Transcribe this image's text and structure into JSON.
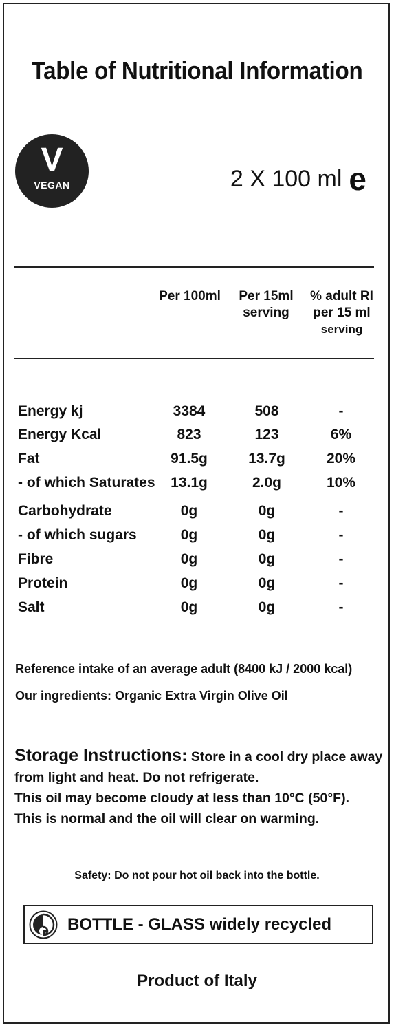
{
  "title": "Table of Nutritional Information",
  "vegan_badge": {
    "letter": "V",
    "label": "VEGAN"
  },
  "volume": {
    "text": "2 X 100 ml",
    "estimated_mark": "e"
  },
  "table": {
    "headers": [
      [
        "Per 100ml"
      ],
      [
        "Per 15ml",
        "serving"
      ],
      [
        "% adult RI",
        "per 15 ml",
        "serving"
      ]
    ],
    "rows": [
      {
        "name": "Energy kj",
        "per100": "3384",
        "per15": "508",
        "ri": "-"
      },
      {
        "name": "Energy Kcal",
        "per100": "823",
        "per15": "123",
        "ri": "6%"
      },
      {
        "name": "Fat",
        "per100": "91.5g",
        "per15": "13.7g",
        "ri": "20%"
      },
      {
        "name": "- of which Saturates",
        "per100": "13.1g",
        "per15": "2.0g",
        "ri": "10%"
      },
      {
        "name": "Carbohydrate",
        "per100": "0g",
        "per15": "0g",
        "ri": "-"
      },
      {
        "name": "- of which sugars",
        "per100": "0g",
        "per15": "0g",
        "ri": "-"
      },
      {
        "name": "Fibre",
        "per100": "0g",
        "per15": "0g",
        "ri": "-"
      },
      {
        "name": "Protein",
        "per100": "0g",
        "per15": "0g",
        "ri": "-"
      },
      {
        "name": "Salt",
        "per100": "0g",
        "per15": "0g",
        "ri": "-"
      }
    ]
  },
  "reference_intake": "Reference intake of an average adult (8400 kJ / 2000 kcal)",
  "ingredients": "Our ingredients: Organic Extra Virgin Olive Oil",
  "storage": {
    "label": "Storage Instructions:",
    "line1": " Store in a cool dry place away",
    "line2": "from light and heat. Do not refrigerate.",
    "line3": "This oil may become cloudy at less than 10°C (50°F).",
    "line4": "This is normal and the oil will clear on warming."
  },
  "safety": "Safety: Do not pour hot oil back into the bottle.",
  "recycling": {
    "icon": "green-dot-icon",
    "text": "BOTTLE - GLASS widely recycled"
  },
  "origin": "Product of Italy"
}
